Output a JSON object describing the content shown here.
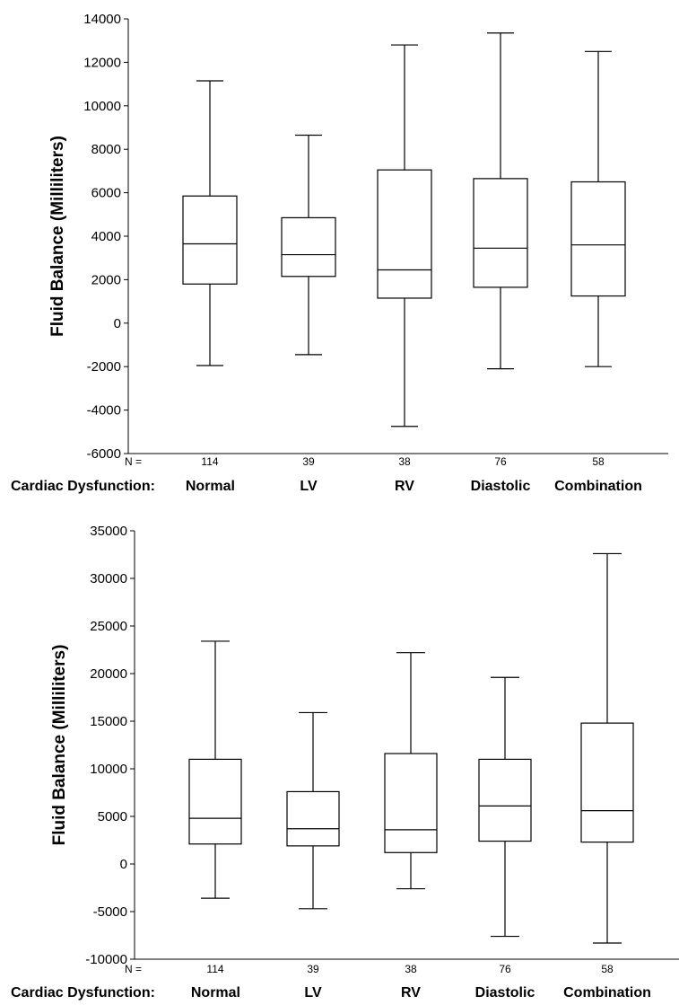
{
  "chart_data": [
    {
      "type": "boxplot",
      "ylabel": "Fluid Balance (Milliliters)",
      "ylim": [
        -6000,
        14000
      ],
      "yticks": [
        "14000",
        "12000",
        "10000",
        "8000",
        "6000",
        "4000",
        "2000",
        "0",
        "-2000",
        "-4000",
        "-6000"
      ],
      "n_label": "N =",
      "x_prefix": "Cardiac Dysfunction:",
      "categories": [
        "Normal",
        "LV",
        "RV",
        "Diastolic",
        "Combination"
      ],
      "n": [
        "114",
        "39",
        "38",
        "76",
        "58"
      ],
      "boxes": [
        {
          "min": -1950,
          "q1": 1800,
          "median": 3650,
          "q3": 5850,
          "max": 11150
        },
        {
          "min": -1450,
          "q1": 2150,
          "median": 3150,
          "q3": 4850,
          "max": 8650
        },
        {
          "min": -4750,
          "q1": 1150,
          "median": 2450,
          "q3": 7050,
          "max": 12800
        },
        {
          "min": -2100,
          "q1": 1650,
          "median": 3450,
          "q3": 6650,
          "max": 13350
        },
        {
          "min": -2000,
          "q1": 1250,
          "median": 3600,
          "q3": 6500,
          "max": 12500
        }
      ]
    },
    {
      "type": "boxplot",
      "ylabel": "Fluid Balance (Milliliters)",
      "ylim": [
        -10000,
        35000
      ],
      "yticks": [
        "35000",
        "30000",
        "25000",
        "20000",
        "15000",
        "10000",
        "5000",
        "0",
        "-5000",
        "-10000"
      ],
      "n_label": "N =",
      "x_prefix": "Cardiac Dysfunction:",
      "categories": [
        "Normal",
        "LV",
        "RV",
        "Diastolic",
        "Combination"
      ],
      "n": [
        "114",
        "39",
        "38",
        "76",
        "58"
      ],
      "boxes": [
        {
          "min": -3600,
          "q1": 2100,
          "median": 4800,
          "q3": 11000,
          "max": 23400
        },
        {
          "min": -4700,
          "q1": 1900,
          "median": 3700,
          "q3": 7600,
          "max": 15900
        },
        {
          "min": -2600,
          "q1": 1200,
          "median": 3600,
          "q3": 11600,
          "max": 22200
        },
        {
          "min": -7600,
          "q1": 2400,
          "median": 6100,
          "q3": 11000,
          "max": 19600
        },
        {
          "min": -8300,
          "q1": 2300,
          "median": 5600,
          "q3": 14800,
          "max": 32600
        }
      ]
    }
  ]
}
